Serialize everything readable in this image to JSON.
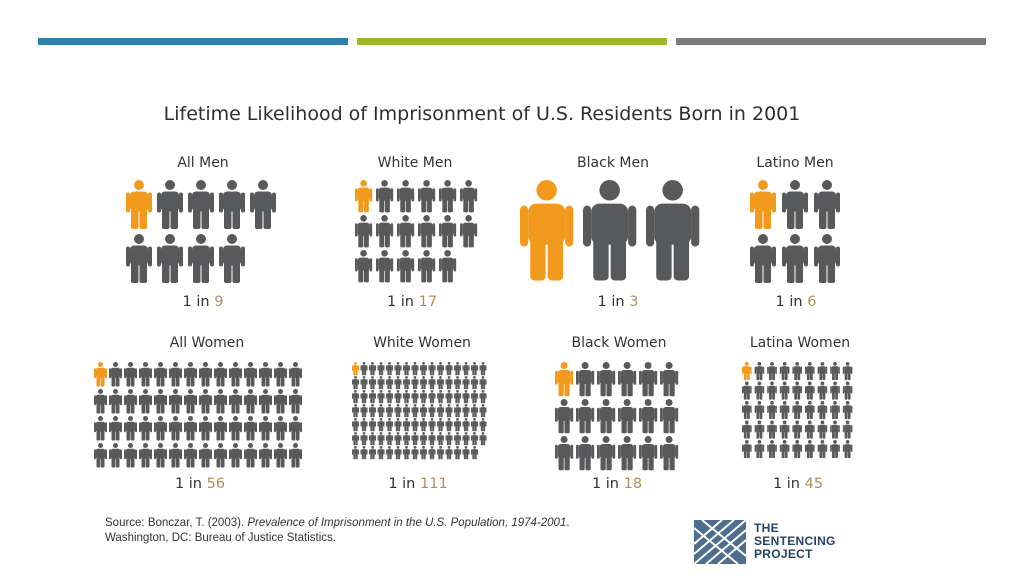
{
  "header": {
    "bar_colors": [
      "#2f7fad",
      "#9fb52b",
      "#7a7a7a"
    ]
  },
  "chart_data": {
    "type": "pictogram",
    "title": "Lifetime Likelihood of Imprisonment of U.S. Residents Born in 2001",
    "highlight_color": "#f29a1d",
    "base_color": "#58595b",
    "ratio_number_color": "#b0905a",
    "panels": [
      {
        "label": "All Men",
        "prefix": "1 in ",
        "denominator": "9",
        "figures": 9
      },
      {
        "label": "White Men",
        "prefix": "1 in ",
        "denominator": "17",
        "figures": 17
      },
      {
        "label": "Black Men",
        "prefix": "1 in ",
        "denominator": "3",
        "figures": 3
      },
      {
        "label": "Latino Men",
        "prefix": "1 in ",
        "denominator": "6",
        "figures": 6
      },
      {
        "label": "All Women",
        "prefix": "1 in ",
        "denominator": "56",
        "figures": 56
      },
      {
        "label": "White Women",
        "prefix": "1 in ",
        "denominator": "111",
        "figures": 111
      },
      {
        "label": "Black Women",
        "prefix": "1 in ",
        "denominator": "18",
        "figures": 18
      },
      {
        "label": "Latina Women",
        "prefix": "1 in ",
        "denominator": "45",
        "figures": 45
      }
    ]
  },
  "source": {
    "prefix": "Source: Bonczar, T. (2003). ",
    "title_italic": "Prevalence of Imprisonment in the U.S. Population, 1974-2001",
    "suffix": ". Washington, DC: Bureau of Justice Statistics."
  },
  "logo": {
    "line1": "THE",
    "line2": "SENTENCING",
    "line3": "PROJECT",
    "color": "#24456b"
  }
}
